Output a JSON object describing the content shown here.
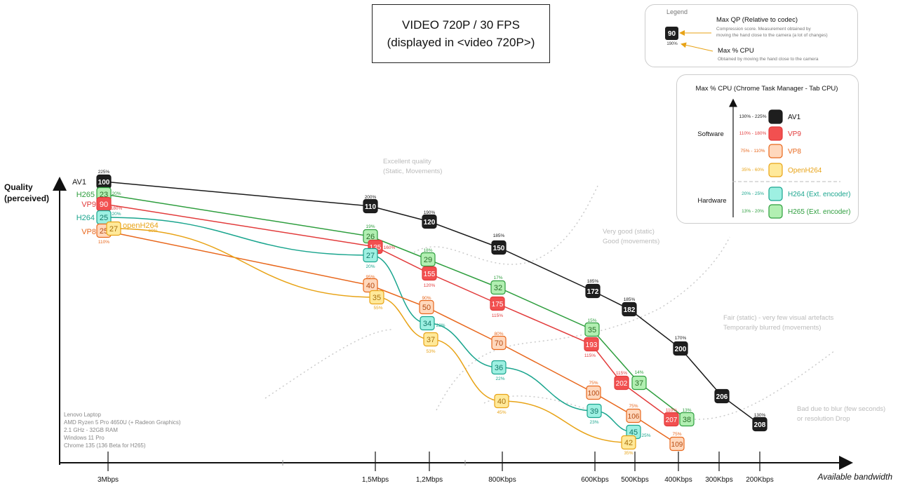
{
  "title": {
    "line1": "VIDEO 720P / 30 FPS",
    "line2": "(displayed in <video 720P>)"
  },
  "legend": {
    "title": "Legend",
    "sample_box": "90",
    "sample_cpu": "190%",
    "qp_title": "Max QP (Relative to codec)",
    "qp_desc_1": "Compression score. Measurement obtained by",
    "qp_desc_2": "moving the hand close  to the camera (a lot of changes)",
    "cpu_title": "Max % CPU",
    "cpu_desc": "Obtained by moving the hand close to the camera"
  },
  "cpu_panel": {
    "title": "Max % CPU (Chrome Task Manager - Tab CPU)",
    "software_label": "Software",
    "hardware_label": "Hardware",
    "rows": [
      {
        "range": "130% - 225%",
        "name": "AV1",
        "group": "software"
      },
      {
        "range": "110% - 180%",
        "name": "VP9",
        "group": "software"
      },
      {
        "range": "75% - 110%",
        "name": "VP8",
        "group": "software"
      },
      {
        "range": "35% - 60%",
        "name": "OpenH264",
        "group": "software"
      },
      {
        "range": "20% - 25%",
        "name": "H264 (Ext. encoder)",
        "group": "hardware"
      },
      {
        "range": "13% - 20%",
        "name": "H265 (Ext. encoder)",
        "group": "hardware"
      }
    ]
  },
  "machine": {
    "line1": "Lenovo Laptop",
    "line2": "AMD Ryzen 5 Pro 4650U (+ Radeon Graphics)",
    "line3": "2.1 GHz - 32GB RAM",
    "line4": "Windows 11 Pro",
    "line5": "Chrome 135 (136  Beta for H265)"
  },
  "zones": {
    "excellent_1": "Excellent quality",
    "excellent_2": "(Static, Movements)",
    "verygood_1": "Very good (static)",
    "verygood_2": "Good (movements)",
    "fair_1": "Fair (static) - very few visual artefacts",
    "fair_2": "Temporarily blurred (movements)",
    "bad_1": "Bad due to blur (few seconds)",
    "bad_2": "or resolution Drop"
  },
  "colors": {
    "AV1": "#1a1a1a",
    "H265": "#2e9e3e",
    "VP9": "#e23b3b",
    "H264": "#1aa58e",
    "VP8": "#e8671c",
    "OpenH264": "#e8a316",
    "fill_AV1": "#1e1e1e",
    "fill_H265": "#b2efb2",
    "fill_VP9": "#f25050",
    "fill_H264": "#9ef0e2",
    "fill_VP8": "#ffd8bd",
    "fill_OpenH264": "#ffe99a",
    "text_AV1": "#ffffff",
    "text_H265": "#2a6f2a",
    "text_VP9": "#ffffff",
    "text_H264": "#137a6a",
    "text_VP8": "#b74a10",
    "text_OpenH264": "#a8700c"
  },
  "chart_data": {
    "type": "line",
    "title": "VIDEO 720P / 30 FPS (displayed in <video 720P>)",
    "xlabel": "Available bandwidth",
    "ylabel_1": "Quality",
    "ylabel_2": "(perceived)",
    "x_ticks": [
      "3Mbps",
      "1,5Mbps",
      "1,2Mbps",
      "800Kbps",
      "600Kbps",
      "500Kbps",
      "400Kbps",
      "300Kbps",
      "200Kbps"
    ],
    "series": [
      {
        "name": "AV1",
        "label": "AV1",
        "points": [
          {
            "x": "3Mbps",
            "qp": 100,
            "cpu": "225%"
          },
          {
            "x": "1,5Mbps",
            "qp": 110,
            "cpu": "200%"
          },
          {
            "x": "1,2Mbps",
            "qp": 120,
            "cpu": "190%"
          },
          {
            "x": "800Kbps",
            "qp": 150,
            "cpu": "185%"
          },
          {
            "x": "600Kbps",
            "qp": 172,
            "cpu": "185%"
          },
          {
            "x": "500Kbps",
            "qp": 182,
            "cpu": "185%"
          },
          {
            "x": "400Kbps",
            "qp": 200,
            "cpu": "170%"
          },
          {
            "x": "300Kbps",
            "qp": 206,
            "cpu": ""
          },
          {
            "x": "200Kbps",
            "qp": 208,
            "cpu": "130%"
          }
        ]
      },
      {
        "name": "H265",
        "label": "H265",
        "points": [
          {
            "x": "3Mbps",
            "qp": 23,
            "cpu": "20%"
          },
          {
            "x": "1,5Mbps",
            "qp": 26,
            "cpu": "19%"
          },
          {
            "x": "1,2Mbps",
            "qp": 29,
            "cpu": "18%"
          },
          {
            "x": "800Kbps",
            "qp": 32,
            "cpu": "17%"
          },
          {
            "x": "600Kbps",
            "qp": 35,
            "cpu": "15%"
          },
          {
            "x": "500Kbps",
            "qp": 37,
            "cpu": "14%"
          },
          {
            "x": "400Kbps",
            "qp": 38,
            "cpu": "13%"
          }
        ]
      },
      {
        "name": "VP9",
        "label": "VP9",
        "points": [
          {
            "x": "3Mbps",
            "qp": 90,
            "cpu": "180%"
          },
          {
            "x": "1,5Mbps",
            "qp": 135,
            "cpu": "160%"
          },
          {
            "x": "1,2Mbps",
            "qp": 155,
            "cpu": "120%"
          },
          {
            "x": "800Kbps",
            "qp": 175,
            "cpu": "115%"
          },
          {
            "x": "600Kbps",
            "qp": 193,
            "cpu": "115%"
          },
          {
            "x": "500Kbps",
            "qp": 202,
            "cpu": "115%"
          },
          {
            "x": "400Kbps",
            "qp": 207,
            "cpu": "110%"
          }
        ]
      },
      {
        "name": "H264",
        "label": "H264",
        "points": [
          {
            "x": "3Mbps",
            "qp": 25,
            "cpu": "20%"
          },
          {
            "x": "1,5Mbps",
            "qp": 27,
            "cpu": "20%"
          },
          {
            "x": "1,2Mbps",
            "qp": 34,
            "cpu": "22%"
          },
          {
            "x": "800Kbps",
            "qp": 36,
            "cpu": "22%"
          },
          {
            "x": "600Kbps",
            "qp": 39,
            "cpu": "23%"
          },
          {
            "x": "500Kbps",
            "qp": 45,
            "cpu": "25%"
          }
        ]
      },
      {
        "name": "VP8",
        "label": "VP8",
        "points": [
          {
            "x": "3Mbps",
            "qp": 25,
            "cpu": "110%"
          },
          {
            "x": "1,5Mbps",
            "qp": 40,
            "cpu": "95%"
          },
          {
            "x": "1,2Mbps",
            "qp": 50,
            "cpu": "90%"
          },
          {
            "x": "800Kbps",
            "qp": 70,
            "cpu": "80%"
          },
          {
            "x": "600Kbps",
            "qp": 100,
            "cpu": "75%"
          },
          {
            "x": "500Kbps",
            "qp": 106,
            "cpu": "75%"
          },
          {
            "x": "400Kbps",
            "qp": 109,
            "cpu": "75%"
          }
        ]
      },
      {
        "name": "OpenH264",
        "label": "openH264",
        "points": [
          {
            "x": "3Mbps",
            "qp": 27,
            "cpu": "60%"
          },
          {
            "x": "1,5Mbps",
            "qp": 35,
            "cpu": "55%"
          },
          {
            "x": "1,2Mbps",
            "qp": 37,
            "cpu": "53%"
          },
          {
            "x": "800Kbps",
            "qp": 40,
            "cpu": "45%"
          },
          {
            "x": "500Kbps",
            "qp": 42,
            "cpu": "35%"
          }
        ]
      }
    ]
  }
}
